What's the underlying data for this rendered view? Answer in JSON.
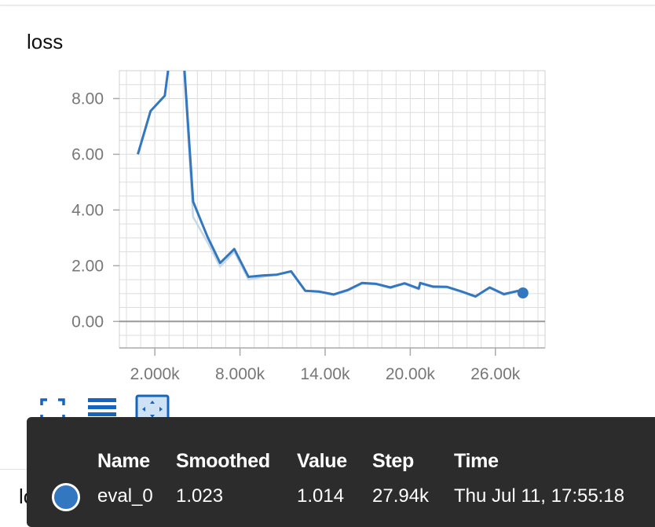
{
  "card": {
    "title": "loss"
  },
  "next_card": {
    "title": "loss"
  },
  "toolbar": {
    "icons": [
      "fullscreen-icon",
      "toggle-log-scale-icon",
      "fit-domain-icon"
    ],
    "accent": "#1565c0"
  },
  "chart_data": {
    "type": "line",
    "title": "loss",
    "xlim": [
      -0.5,
      29.5
    ],
    "ylim": [
      -0.95,
      9.0
    ],
    "x_ticks": [
      2,
      8,
      14,
      20,
      26
    ],
    "x_tick_labels": [
      "2.000k",
      "8.000k",
      "14.00k",
      "20.00k",
      "26.00k"
    ],
    "y_ticks": [
      0,
      2,
      4,
      6,
      8
    ],
    "y_tick_labels": [
      "0.00",
      "2.00",
      "4.00",
      "6.00",
      "8.00"
    ],
    "grid": true,
    "series": [
      {
        "name": "eval_0",
        "color": "#3277c0",
        "x": [
          0.8,
          1.7,
          2.7,
          3.7,
          4.7,
          5.7,
          6.6,
          7.6,
          8.6,
          9.6,
          10.6,
          11.6,
          12.6,
          13.6,
          14.6,
          15.6,
          16.6,
          17.6,
          18.6,
          19.6,
          20.6,
          20.7,
          21.6,
          22.6,
          23.6,
          24.6,
          25.6,
          26.6,
          27.6,
          27.94
        ],
        "y": [
          6.0,
          7.55,
          8.1,
          12.0,
          4.3,
          3.05,
          2.1,
          2.6,
          1.6,
          1.65,
          1.68,
          1.8,
          1.1,
          1.07,
          0.97,
          1.13,
          1.38,
          1.35,
          1.22,
          1.37,
          1.18,
          1.38,
          1.25,
          1.24,
          1.08,
          0.9,
          1.22,
          0.98,
          1.1,
          1.023
        ]
      },
      {
        "name": "eval_0 (raw)",
        "color": "#c9d7e6",
        "x": [
          0.8,
          1.7,
          2.7,
          3.7,
          4.7,
          5.7,
          6.6,
          7.6,
          8.6,
          9.6,
          10.6,
          11.6,
          12.6,
          13.6,
          14.6,
          15.6,
          16.6,
          17.6,
          18.6,
          19.6,
          20.6,
          20.7,
          21.6,
          22.6,
          23.6,
          24.6,
          25.6,
          26.6,
          27.6,
          27.94
        ],
        "y": [
          6.0,
          7.55,
          8.1,
          12.0,
          3.75,
          2.85,
          1.97,
          2.5,
          1.5,
          1.6,
          1.68,
          1.78,
          1.1,
          1.05,
          0.95,
          1.1,
          1.35,
          1.33,
          1.2,
          1.35,
          1.15,
          1.36,
          1.23,
          1.22,
          1.05,
          0.88,
          1.2,
          0.95,
          1.08,
          1.014
        ]
      }
    ],
    "highlight": {
      "x": 27.94,
      "y": 1.023
    }
  },
  "tooltip": {
    "headers": {
      "name": "Name",
      "smoothed": "Smoothed",
      "value": "Value",
      "step": "Step",
      "time": "Time"
    },
    "row": {
      "name": "eval_0",
      "smoothed": "1.023",
      "value": "1.014",
      "step": "27.94k",
      "time": "Thu Jul 11, 17:55:18",
      "color": "#3277c0"
    }
  }
}
